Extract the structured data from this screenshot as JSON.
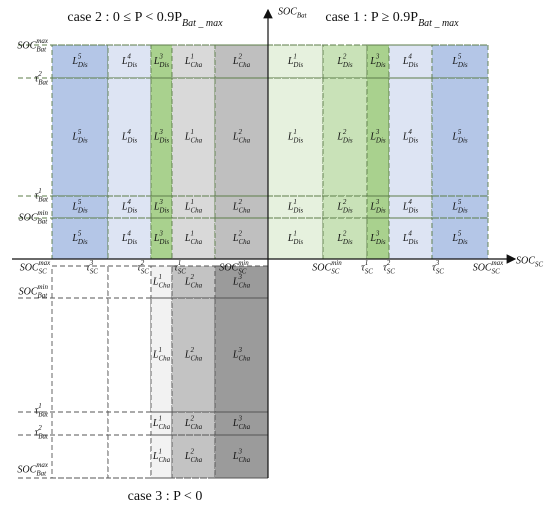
{
  "titles": {
    "case2": {
      "b": "case 2 : 0 ≤ P < 0.9P",
      "sub": "Bat _ max"
    },
    "case1": {
      "b": "case 1 : P ≥ 0.9P",
      "sub": "Bat _ max"
    },
    "case3": {
      "b": "case 3 : P < 0"
    }
  },
  "axes": {
    "y": {
      "b": "SOC",
      "sub": "Bat"
    },
    "x": {
      "b": "SOC",
      "sub": "SC"
    }
  },
  "y_ticks_top": [
    {
      "b": "SOC",
      "sup": "max",
      "sub": "Bat"
    },
    {
      "b": "τ",
      "sup": "2",
      "sub": "Bat"
    },
    {
      "b": "τ",
      "sup": "1",
      "sub": "Bat"
    },
    {
      "b": "SOC",
      "sup": "min",
      "sub": "Bat"
    }
  ],
  "y_ticks_bottom": [
    {
      "b": "SOC",
      "sup": "min",
      "sub": "Bat"
    },
    {
      "b": "τ",
      "sup": "1",
      "sub": "Bat"
    },
    {
      "b": "τ",
      "sup": "2",
      "sub": "Bat"
    },
    {
      "b": "SOC",
      "sup": "max",
      "sub": "Bat"
    }
  ],
  "x_ticks_left": [
    {
      "b": "SOC",
      "sup": "max",
      "sub": "SC"
    },
    {
      "b": "τ",
      "sup": "3",
      "sub": "SC"
    },
    {
      "b": "τ",
      "sup": "2",
      "sub": "SC"
    },
    {
      "b": "τ",
      "sup": "1",
      "sub": "SC"
    },
    {
      "b": "SOC",
      "sup": "min",
      "sub": "SC"
    }
  ],
  "x_ticks_right": [
    {
      "b": "SOC",
      "sup": "min",
      "sub": "SC"
    },
    {
      "b": "τ",
      "sup": "1",
      "sub": "SC"
    },
    {
      "b": "τ",
      "sup": "2",
      "sub": "SC"
    },
    {
      "b": "τ",
      "sup": "3",
      "sub": "SC"
    },
    {
      "b": "SOC",
      "sup": "max",
      "sub": "SC"
    }
  ],
  "case2_cells": [
    [
      {
        "b": "L",
        "sup": "5",
        "sub": "Dis"
      },
      {
        "b": "L",
        "sup": "4",
        "sub": "Dis"
      },
      {
        "b": "L",
        "sup": "3",
        "sub": "Dis"
      },
      {
        "b": "L",
        "sup": "1",
        "sub": "Cha"
      },
      {
        "b": "L",
        "sup": "2",
        "sub": "Cha"
      }
    ],
    [
      {
        "b": "L",
        "sup": "5",
        "sub": "Dis"
      },
      {
        "b": "L",
        "sup": "4",
        "sub": "Dis"
      },
      {
        "b": "L",
        "sup": "3",
        "sub": "Dis"
      },
      {
        "b": "L",
        "sup": "1",
        "sub": "Cha"
      },
      {
        "b": "L",
        "sup": "2",
        "sub": "Cha"
      }
    ],
    [
      {
        "b": "L",
        "sup": "5",
        "sub": "Dis"
      },
      {
        "b": "L",
        "sup": "4",
        "sub": "Dis"
      },
      {
        "b": "L",
        "sup": "3",
        "sub": "Dis"
      },
      {
        "b": "L",
        "sup": "1",
        "sub": "Cha"
      },
      {
        "b": "L",
        "sup": "2",
        "sub": "Cha"
      }
    ],
    [
      {
        "b": "L",
        "sup": "5",
        "sub": "Dis"
      },
      {
        "b": "L",
        "sup": "4",
        "sub": "Dis"
      },
      {
        "b": "L",
        "sup": "3",
        "sub": "Dis"
      },
      {
        "b": "L",
        "sup": "1",
        "sub": "Cha"
      },
      {
        "b": "L",
        "sup": "2",
        "sub": "Cha"
      }
    ]
  ],
  "case1_cells": [
    [
      {
        "b": "L",
        "sup": "1",
        "sub": "Dis"
      },
      {
        "b": "L",
        "sup": "2",
        "sub": "Dis"
      },
      {
        "b": "L",
        "sup": "3",
        "sub": "Dis"
      },
      {
        "b": "L",
        "sup": "4",
        "sub": "Dis"
      },
      {
        "b": "L",
        "sup": "5",
        "sub": "Dis"
      }
    ],
    [
      {
        "b": "L",
        "sup": "1",
        "sub": "Dis"
      },
      {
        "b": "L",
        "sup": "2",
        "sub": "Dis"
      },
      {
        "b": "L",
        "sup": "3",
        "sub": "Dis"
      },
      {
        "b": "L",
        "sup": "4",
        "sub": "Dis"
      },
      {
        "b": "L",
        "sup": "5",
        "sub": "Dis"
      }
    ],
    [
      {
        "b": "L",
        "sup": "1",
        "sub": "Dis"
      },
      {
        "b": "L",
        "sup": "2",
        "sub": "Dis"
      },
      {
        "b": "L",
        "sup": "3",
        "sub": "Dis"
      },
      {
        "b": "L",
        "sup": "4",
        "sub": "Dis"
      },
      {
        "b": "L",
        "sup": "5",
        "sub": "Dis"
      }
    ],
    [
      {
        "b": "L",
        "sup": "1",
        "sub": "Dis"
      },
      {
        "b": "L",
        "sup": "2",
        "sub": "Dis"
      },
      {
        "b": "L",
        "sup": "3",
        "sub": "Dis"
      },
      {
        "b": "L",
        "sup": "4",
        "sub": "Dis"
      },
      {
        "b": "L",
        "sup": "5",
        "sub": "Dis"
      }
    ]
  ],
  "case3_cells": [
    [
      {
        "b": "L",
        "sup": "1",
        "sub": "Cha"
      },
      {
        "b": "L",
        "sup": "2",
        "sub": "Cha"
      },
      {
        "b": "L",
        "sup": "3",
        "sub": "Cha"
      }
    ],
    [
      {
        "b": "L",
        "sup": "1",
        "sub": "Cha"
      },
      {
        "b": "L",
        "sup": "2",
        "sub": "Cha"
      },
      {
        "b": "L",
        "sup": "3",
        "sub": "Cha"
      }
    ],
    [
      {
        "b": "L",
        "sup": "1",
        "sub": "Cha"
      },
      {
        "b": "L",
        "sup": "2",
        "sub": "Cha"
      },
      {
        "b": "L",
        "sup": "3",
        "sub": "Cha"
      }
    ],
    [
      {
        "b": "L",
        "sup": "1",
        "sub": "Cha"
      },
      {
        "b": "L",
        "sup": "2",
        "sub": "Cha"
      },
      {
        "b": "L",
        "sup": "3",
        "sub": "Cha"
      }
    ]
  ]
}
